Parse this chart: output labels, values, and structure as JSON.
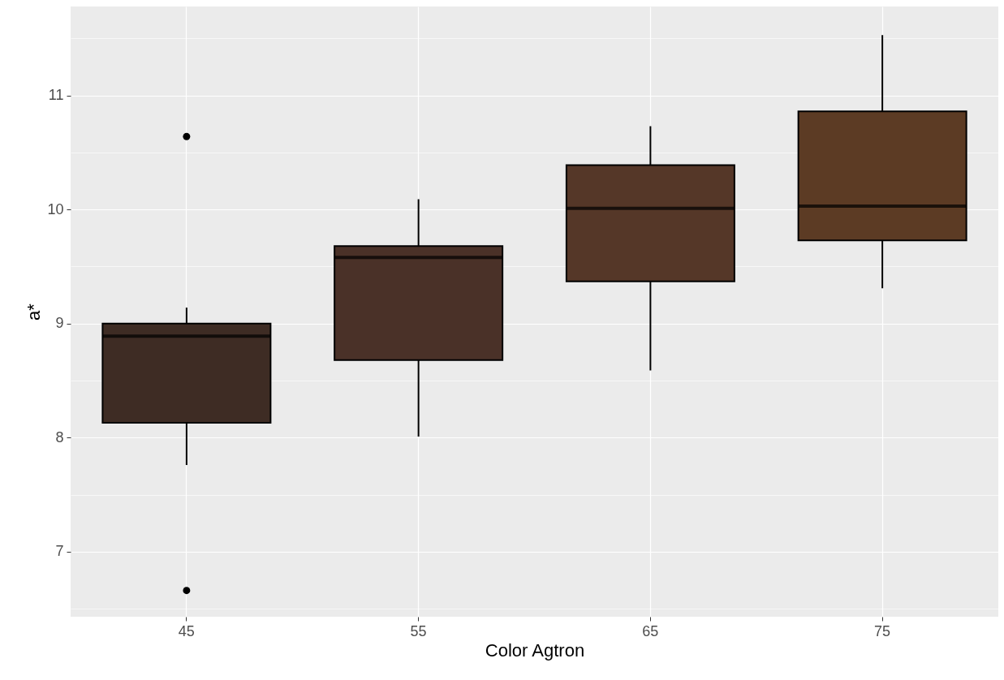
{
  "chart_data": {
    "type": "box",
    "xlabel": "Color Agtron",
    "ylabel": "a*",
    "categories": [
      "45",
      "55",
      "65",
      "75"
    ],
    "colors": [
      "#3e2c24",
      "#4a3128",
      "#553728",
      "#5c3b24"
    ],
    "boxes": [
      {
        "low": 7.76,
        "q1": 8.13,
        "median": 8.89,
        "q3": 9.0,
        "high": 9.14,
        "outliers": [
          10.64,
          6.66
        ]
      },
      {
        "low": 8.01,
        "q1": 8.68,
        "median": 9.58,
        "q3": 9.68,
        "high": 10.09
      },
      {
        "low": 8.59,
        "q1": 9.37,
        "median": 10.01,
        "q3": 10.39,
        "high": 10.73
      },
      {
        "low": 9.31,
        "q1": 9.73,
        "median": 10.03,
        "q3": 10.86,
        "high": 11.53
      }
    ],
    "ylim": [
      6.43,
      11.78
    ],
    "yticks": [
      {
        "value": 6.5,
        "label": null
      },
      7,
      {
        "value": 7.5,
        "label": null
      },
      8,
      {
        "value": 8.5,
        "label": null
      },
      9,
      {
        "value": 9.5,
        "label": null
      },
      10,
      {
        "value": 10.5,
        "label": null
      },
      11,
      {
        "value": 11.5,
        "label": null
      }
    ],
    "grid": true
  }
}
